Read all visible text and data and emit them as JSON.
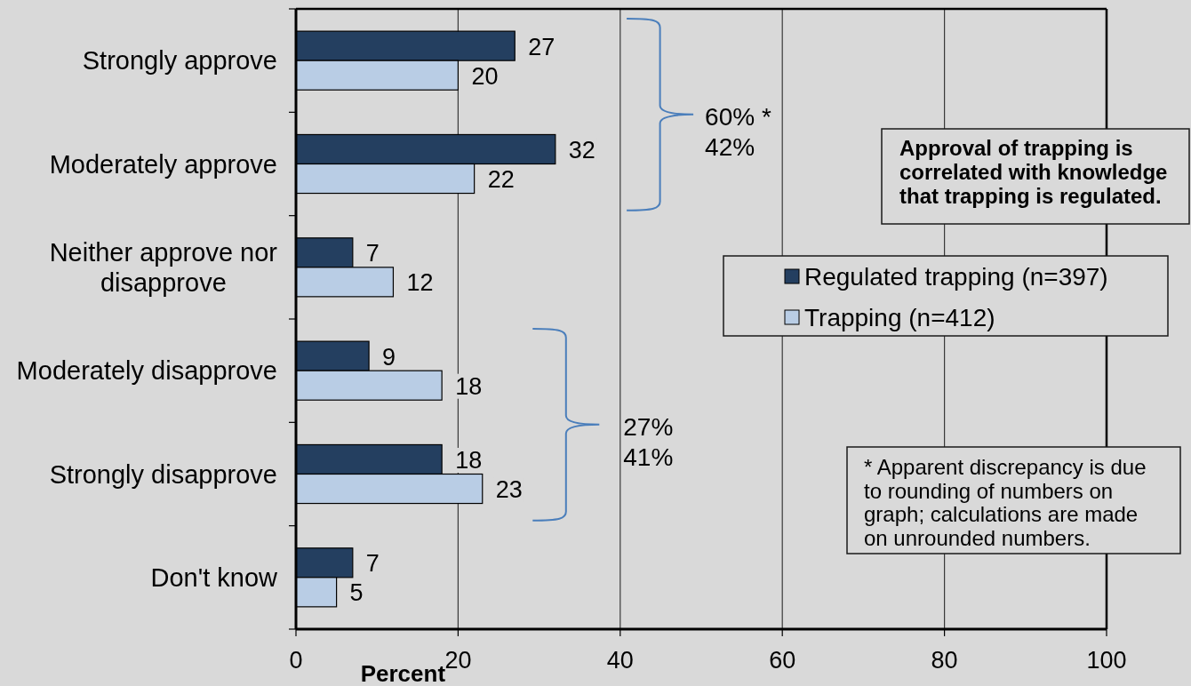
{
  "chart_data": {
    "type": "bar",
    "orientation": "horizontal",
    "categories": [
      "Strongly approve",
      "Moderately approve",
      "Neither approve nor disapprove",
      "Moderately disapprove",
      "Strongly disapprove",
      "Don't know"
    ],
    "series": [
      {
        "name": "Regulated trapping (n=397)",
        "color": "#243f60",
        "values": [
          27,
          32,
          7,
          9,
          18,
          7
        ]
      },
      {
        "name": "Trapping (n=412)",
        "color": "#b9cde5",
        "values": [
          20,
          22,
          12,
          18,
          23,
          5
        ]
      }
    ],
    "xlabel": "Percent",
    "xlim": [
      0,
      100
    ],
    "xticks": [
      0,
      20,
      40,
      60,
      80,
      100
    ],
    "grid": "x",
    "legend": "right",
    "data_labels": true,
    "annotations": [
      "60% *\n42%",
      "27%\n41%",
      "Approval of trapping is correlated with knowledge that trapping is regulated.",
      "* Apparent discrepancy is due to rounding of numbers on graph; calculations are made on unrounded numbers."
    ]
  }
}
